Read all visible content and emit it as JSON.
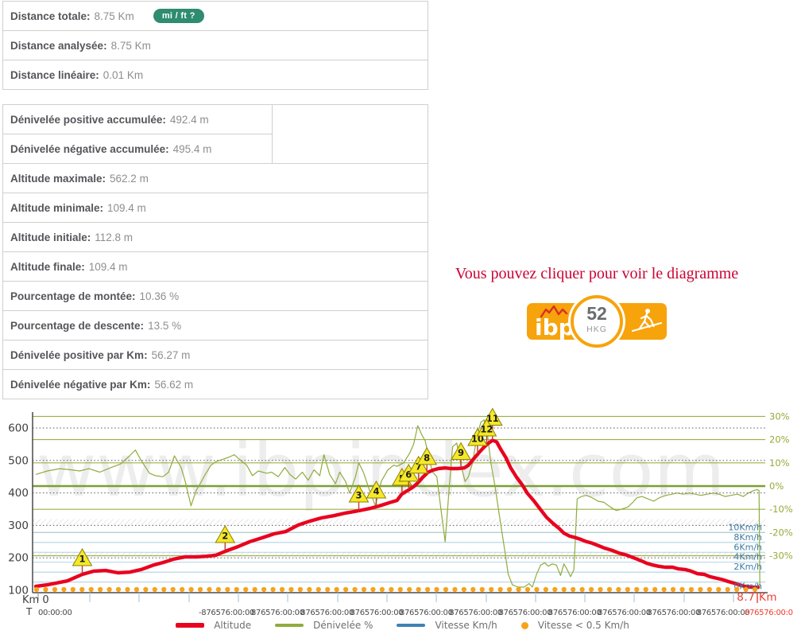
{
  "stats_primary": [
    {
      "label": "Distance totale:",
      "value": "8.75 Km",
      "badge": "mi / ft ?"
    },
    {
      "label": "Distance analysée:",
      "value": "8.75 Km"
    },
    {
      "label": "Distance linéaire:",
      "value": "0.01 Km"
    }
  ],
  "stats_detail": [
    {
      "label": "Dénivelée positive accumulée:",
      "value": "492.4 m",
      "split": true,
      "splitFirst": true
    },
    {
      "label": "Dénivelée négative accumulée:",
      "value": "495.4 m",
      "split": true
    },
    {
      "label": "Altitude maximale:",
      "value": "562.2 m"
    },
    {
      "label": "Altitude minimale:",
      "value": "109.4 m"
    },
    {
      "label": "Altitude initiale:",
      "value": "112.8 m"
    },
    {
      "label": "Altitude finale:",
      "value": "109.4 m"
    },
    {
      "label": "Pourcentage de montée:",
      "value": "10.36 %"
    },
    {
      "label": "Pourcentage de descente:",
      "value": "13.5 %"
    },
    {
      "label": "Dénivelée positive par Km:",
      "value": "56.27 m"
    },
    {
      "label": "Dénivelée négative par Km:",
      "value": "56.62 m"
    }
  ],
  "cta": {
    "text": "Vous pouvez cliquer pour voir le diagramme"
  },
  "ibp_badge": {
    "brand": "ibp",
    "score": "52",
    "code": "HKG"
  },
  "colors": {
    "badge_green": "#2e8c70",
    "cta_red": "#cc0233",
    "ibp_orange": "#f7a30b",
    "altitude": "#e8041f",
    "gradient": "#8fac3e",
    "grid_pct": "#9db044",
    "grid_pct_zero": "#7e9e34",
    "speed_line": "#afd3e8",
    "speed_text": "#41799f",
    "dotted": "#5a5a5a",
    "axis": "#4a4a4a",
    "tick": "#a9cce4",
    "x_text": "#4a4a4a",
    "x_text_red": "#f23b2f",
    "pct_text": "#97a93b",
    "alt_text": "#3e3e3e",
    "marker_fill": "#f5e829",
    "marker_stroke": "#8b8000",
    "marker_stem": "#c23b2e",
    "stop_dot": "#f7a21a",
    "hatch": "#dcdcdc",
    "watermark": "#ededed"
  },
  "chart_data": {
    "type": "line",
    "watermark": "www.ibpindex.com",
    "x_axis": {
      "corner_label": "Km 0",
      "time_axis_label": "T",
      "first_tick": "00:00:00",
      "overflow_tick_first": "-876576:00:00",
      "overflow_tick_repeat": "876576:00:00",
      "overflow_tick_red": "876576:00:0",
      "end_distance": "8.7 Km",
      "xlim_km": [
        0,
        8.75
      ]
    },
    "y_altitude": {
      "unit": "m",
      "ticks": [
        600,
        500,
        400,
        300,
        200,
        100
      ],
      "ylim": [
        100,
        650
      ]
    },
    "y_gradient_pct": {
      "unit": "%",
      "ticks": [
        30,
        20,
        10,
        0,
        -10,
        -20,
        -30
      ]
    },
    "y_speed": {
      "unit": "Km/h",
      "ticks": [
        10,
        8,
        6,
        4,
        2,
        0
      ]
    },
    "legend": [
      {
        "label": "Altitude",
        "type": "line-thick",
        "color": "#e8041f"
      },
      {
        "label": "Dénivelée %",
        "type": "line",
        "color": "#8fac3e"
      },
      {
        "label": "Vitesse Km/h",
        "type": "line",
        "color": "#3e82b4"
      },
      {
        "label": "Vitesse < 0.5 Km/h",
        "type": "dot",
        "color": "#f7a21a"
      }
    ],
    "series": {
      "altitude_m": [
        [
          0,
          112
        ],
        [
          0.14,
          117
        ],
        [
          0.38,
          129
        ],
        [
          0.56,
          149
        ],
        [
          0.7,
          159
        ],
        [
          0.84,
          161
        ],
        [
          0.99,
          154
        ],
        [
          1.13,
          156
        ],
        [
          1.27,
          164
        ],
        [
          1.42,
          178
        ],
        [
          1.54,
          186
        ],
        [
          1.66,
          196
        ],
        [
          1.8,
          203
        ],
        [
          1.94,
          203
        ],
        [
          2.06,
          205
        ],
        [
          2.17,
          208
        ],
        [
          2.28,
          220
        ],
        [
          2.44,
          235
        ],
        [
          2.58,
          250
        ],
        [
          2.73,
          262
        ],
        [
          2.87,
          274
        ],
        [
          3.01,
          281
        ],
        [
          3.16,
          301
        ],
        [
          3.3,
          313
        ],
        [
          3.44,
          323
        ],
        [
          3.59,
          330
        ],
        [
          3.73,
          338
        ],
        [
          3.89,
          345
        ],
        [
          4.02,
          352
        ],
        [
          4.14,
          360
        ],
        [
          4.26,
          370
        ],
        [
          4.35,
          377
        ],
        [
          4.41,
          397
        ],
        [
          4.47,
          406
        ],
        [
          4.55,
          419
        ],
        [
          4.6,
          431
        ],
        [
          4.66,
          448
        ],
        [
          4.72,
          463
        ],
        [
          4.78,
          470
        ],
        [
          4.85,
          475
        ],
        [
          4.93,
          477
        ],
        [
          5.0,
          475
        ],
        [
          5.08,
          475
        ],
        [
          5.16,
          477
        ],
        [
          5.21,
          485
        ],
        [
          5.27,
          504
        ],
        [
          5.33,
          522
        ],
        [
          5.39,
          539
        ],
        [
          5.44,
          551
        ],
        [
          5.5,
          562
        ],
        [
          5.55,
          557
        ],
        [
          5.6,
          534
        ],
        [
          5.66,
          509
        ],
        [
          5.72,
          477
        ],
        [
          5.79,
          448
        ],
        [
          5.86,
          424
        ],
        [
          5.92,
          399
        ],
        [
          6.0,
          375
        ],
        [
          6.08,
          348
        ],
        [
          6.15,
          325
        ],
        [
          6.23,
          306
        ],
        [
          6.3,
          291
        ],
        [
          6.36,
          276
        ],
        [
          6.43,
          267
        ],
        [
          6.5,
          262
        ],
        [
          6.56,
          257
        ],
        [
          6.63,
          250
        ],
        [
          6.7,
          245
        ],
        [
          6.78,
          237
        ],
        [
          6.85,
          230
        ],
        [
          6.94,
          223
        ],
        [
          7.02,
          215
        ],
        [
          7.12,
          208
        ],
        [
          7.22,
          198
        ],
        [
          7.29,
          191
        ],
        [
          7.36,
          183
        ],
        [
          7.43,
          178
        ],
        [
          7.5,
          174
        ],
        [
          7.58,
          171
        ],
        [
          7.67,
          171
        ],
        [
          7.74,
          166
        ],
        [
          7.82,
          164
        ],
        [
          7.89,
          159
        ],
        [
          7.97,
          151
        ],
        [
          8.05,
          149
        ],
        [
          8.12,
          142
        ],
        [
          8.2,
          137
        ],
        [
          8.28,
          132
        ],
        [
          8.34,
          127
        ],
        [
          8.41,
          122
        ],
        [
          8.47,
          117
        ],
        [
          8.54,
          112
        ],
        [
          8.6,
          110
        ],
        [
          8.66,
          109
        ],
        [
          8.7,
          109
        ]
      ],
      "gradient_pct": [
        [
          0,
          5
        ],
        [
          0.14,
          6.5
        ],
        [
          0.29,
          7.5
        ],
        [
          0.43,
          7
        ],
        [
          0.53,
          6.5
        ],
        [
          0.64,
          7.5
        ],
        [
          0.77,
          6
        ],
        [
          0.91,
          8
        ],
        [
          1.02,
          9.5
        ],
        [
          1.13,
          13
        ],
        [
          1.2,
          15.5
        ],
        [
          1.27,
          11
        ],
        [
          1.37,
          5.5
        ],
        [
          1.44,
          4.5
        ],
        [
          1.53,
          4
        ],
        [
          1.6,
          6
        ],
        [
          1.67,
          13
        ],
        [
          1.75,
          8
        ],
        [
          1.8,
          2
        ],
        [
          1.87,
          -8.5
        ],
        [
          1.93,
          -2
        ],
        [
          1.98,
          1
        ],
        [
          2.04,
          5
        ],
        [
          2.11,
          9
        ],
        [
          2.17,
          10.5
        ],
        [
          2.25,
          11.5
        ],
        [
          2.33,
          12.5
        ],
        [
          2.39,
          13.5
        ],
        [
          2.47,
          11
        ],
        [
          2.54,
          9
        ],
        [
          2.61,
          4.5
        ],
        [
          2.68,
          6.5
        ],
        [
          2.78,
          5.5
        ],
        [
          2.84,
          6
        ],
        [
          2.92,
          4
        ],
        [
          3.0,
          8
        ],
        [
          3.06,
          5
        ],
        [
          3.13,
          3
        ],
        [
          3.21,
          6
        ],
        [
          3.28,
          2.5
        ],
        [
          3.35,
          7
        ],
        [
          3.42,
          4.5
        ],
        [
          3.47,
          13.5
        ],
        [
          3.54,
          5
        ],
        [
          3.61,
          1
        ],
        [
          3.66,
          6
        ],
        [
          3.73,
          2
        ],
        [
          3.78,
          -3
        ],
        [
          3.85,
          4
        ],
        [
          3.89,
          10
        ],
        [
          3.95,
          5.5
        ],
        [
          4.02,
          -2
        ],
        [
          4.09,
          -8.5
        ],
        [
          4.16,
          2
        ],
        [
          4.24,
          7
        ],
        [
          4.31,
          9
        ],
        [
          4.35,
          8.5
        ],
        [
          4.43,
          10
        ],
        [
          4.5,
          14
        ],
        [
          4.55,
          18
        ],
        [
          4.6,
          26
        ],
        [
          4.65,
          22
        ],
        [
          4.69,
          19.5
        ],
        [
          4.74,
          11
        ],
        [
          4.78,
          6
        ],
        [
          4.83,
          4
        ],
        [
          4.89,
          -13
        ],
        [
          4.93,
          -24
        ],
        [
          4.98,
          0
        ],
        [
          5.02,
          17
        ],
        [
          5.07,
          18.5
        ],
        [
          5.12,
          9
        ],
        [
          5.17,
          2
        ],
        [
          5.21,
          4
        ],
        [
          5.26,
          10
        ],
        [
          5.31,
          21
        ],
        [
          5.36,
          27.5
        ],
        [
          5.4,
          28.5
        ],
        [
          5.44,
          22
        ],
        [
          5.48,
          10
        ],
        [
          5.53,
          0
        ],
        [
          5.58,
          -12
        ],
        [
          5.64,
          -26
        ],
        [
          5.69,
          -38
        ],
        [
          5.74,
          -42.5
        ],
        [
          5.81,
          -43.5
        ],
        [
          5.88,
          -43.5
        ],
        [
          5.94,
          -42
        ],
        [
          5.98,
          -43.5
        ],
        [
          6.03,
          -38
        ],
        [
          6.08,
          -34
        ],
        [
          6.13,
          -33
        ],
        [
          6.17,
          -34.5
        ],
        [
          6.22,
          -33.5
        ],
        [
          6.27,
          -34
        ],
        [
          6.32,
          -38.5
        ],
        [
          6.36,
          -33.5
        ],
        [
          6.4,
          -36
        ],
        [
          6.44,
          -39
        ],
        [
          6.48,
          -36
        ],
        [
          6.52,
          -5.5
        ],
        [
          6.57,
          -4.5
        ],
        [
          6.63,
          -4
        ],
        [
          6.7,
          -5
        ],
        [
          6.77,
          -6.5
        ],
        [
          6.84,
          -7
        ],
        [
          6.92,
          -9
        ],
        [
          6.99,
          -10.5
        ],
        [
          7.05,
          -10
        ],
        [
          7.13,
          -9
        ],
        [
          7.19,
          -7
        ],
        [
          7.24,
          -5
        ],
        [
          7.3,
          -4.5
        ],
        [
          7.37,
          -5.5
        ],
        [
          7.44,
          -6.5
        ],
        [
          7.51,
          -5
        ],
        [
          7.59,
          -4
        ],
        [
          7.66,
          -3.5
        ],
        [
          7.72,
          -3
        ],
        [
          7.8,
          -3.5
        ],
        [
          7.87,
          -3
        ],
        [
          7.94,
          -3.5
        ],
        [
          8.01,
          -4
        ],
        [
          8.09,
          -3.5
        ],
        [
          8.16,
          -3
        ],
        [
          8.23,
          -3.5
        ],
        [
          8.3,
          -4.5
        ],
        [
          8.37,
          -4
        ],
        [
          8.45,
          -3.5
        ],
        [
          8.52,
          -4.5
        ],
        [
          8.58,
          -3
        ],
        [
          8.64,
          -2
        ],
        [
          8.69,
          -1.5
        ],
        [
          8.71,
          -2
        ],
        [
          8.72,
          -43
        ]
      ],
      "speed_stop_dots": {
        "meaning": "Vitesse < 0.5 Km/h",
        "km_start": 0.01,
        "km_end": 8.71,
        "step_km": 0.1095
      }
    },
    "markers": [
      {
        "n": "1",
        "km": 0.56
      },
      {
        "n": "2",
        "km": 2.28
      },
      {
        "n": "3",
        "km": 3.89
      },
      {
        "n": "4",
        "km": 4.1
      },
      {
        "n": "5",
        "km": 4.41
      },
      {
        "n": "6",
        "km": 4.49
      },
      {
        "n": "7",
        "km": 4.61
      },
      {
        "n": "8",
        "km": 4.71
      },
      {
        "n": "9",
        "km": 5.12
      },
      {
        "n": "10",
        "km": 5.32
      },
      {
        "n": "11",
        "km": 5.5,
        "lift": 8
      },
      {
        "n": "12",
        "km": 5.43
      }
    ]
  }
}
